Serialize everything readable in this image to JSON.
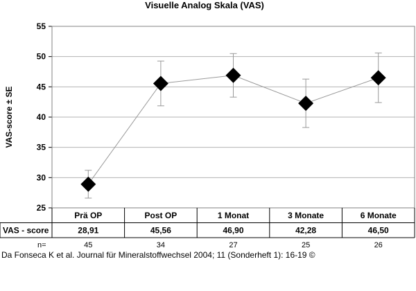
{
  "chart_data": {
    "type": "line",
    "title": "Visuelle Analog Skala (VAS)",
    "xlabel": "",
    "ylabel": "VAS-score ± SE",
    "ylim": [
      25,
      55
    ],
    "yticks": [
      25,
      30,
      35,
      40,
      45,
      50,
      55
    ],
    "grid": true,
    "legend": "none",
    "marker": "diamond",
    "categories": [
      "Prä OP",
      "Post OP",
      "1 Monat",
      "3 Monate",
      "6 Monate"
    ],
    "series": [
      {
        "values": [
          28.91,
          45.56,
          46.9,
          42.28,
          46.5
        ],
        "se": [
          2.3,
          3.7,
          3.6,
          4.0,
          4.1
        ]
      }
    ],
    "table": {
      "row_label": "VAS - score",
      "values": [
        "28,91",
        "45,56",
        "46,90",
        "42,28",
        "46,50"
      ]
    },
    "n_label": "n=",
    "n_values": [
      "45",
      "34",
      "27",
      "25",
      "26"
    ],
    "colors": {
      "marker": "#000000",
      "line": "#999999",
      "grid": "#b3b3b3",
      "border": "#808080"
    }
  },
  "citation": "Da Fonseca K et al. Journal für Mineralstoffwechsel 2004; 11 (Sonderheft 1): 16-19 ©"
}
